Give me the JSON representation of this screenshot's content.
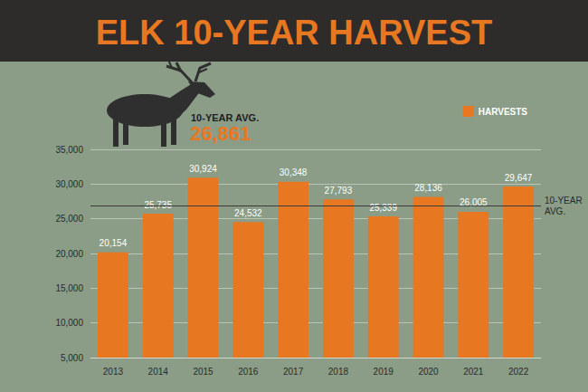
{
  "chart_data": {
    "type": "bar",
    "title": "ELK 10-YEAR HARVEST",
    "categories": [
      "2013",
      "2014",
      "2015",
      "2016",
      "2017",
      "2018",
      "2019",
      "2020",
      "2021",
      "2022"
    ],
    "series": [
      {
        "name": "HARVESTS",
        "color": "#e87722",
        "values": [
          20154,
          25735,
          30924,
          24532,
          30348,
          27793,
          25339,
          28136,
          26005,
          29647
        ],
        "value_labels": [
          "20,154",
          "25,735",
          "30,924",
          "24,532",
          "30,348",
          "27,793",
          "25,339",
          "28,136",
          "26,005",
          "29,647"
        ]
      }
    ],
    "average": {
      "value": 26861,
      "label": "10-YEAR AVG.",
      "value_label": "26,861"
    },
    "ylim": [
      5000,
      35000
    ],
    "yticks": [
      {
        "value": 5000,
        "label": "5,000"
      },
      {
        "value": 10000,
        "label": "10,000"
      },
      {
        "value": 15000,
        "label": "15,000"
      },
      {
        "value": 20000,
        "label": "20,000"
      },
      {
        "value": 25000,
        "label": "25,000"
      },
      {
        "value": 30000,
        "label": "30,000"
      },
      {
        "value": 35000,
        "label": "35,000"
      }
    ],
    "grid": true,
    "data_labels": true,
    "legend": "upper right"
  }
}
